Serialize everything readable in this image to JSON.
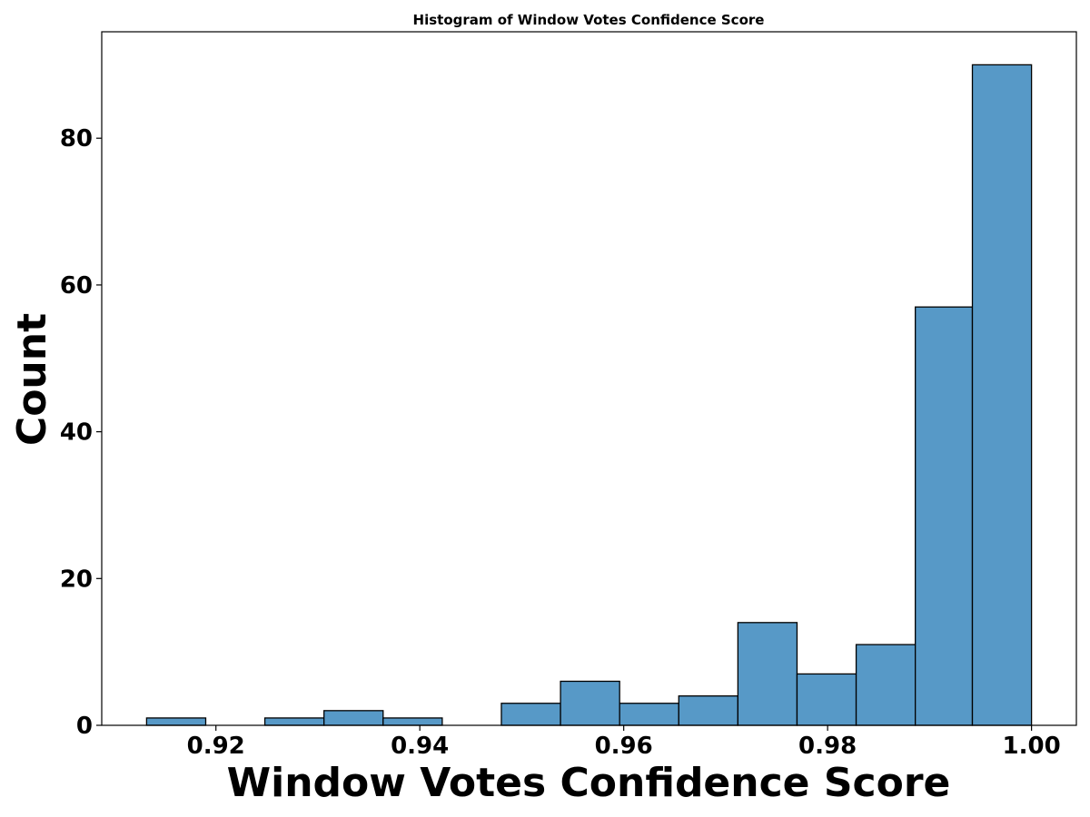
{
  "chart_data": {
    "type": "bar",
    "subtype": "histogram",
    "title": "Histogram of Window Votes Confidence Score",
    "xlabel": "Window Votes Confidence Score",
    "ylabel": "Count",
    "xlim": [
      0.9088,
      1.0044
    ],
    "ylim": [
      0,
      94.5
    ],
    "x_ticks": [
      0.92,
      0.94,
      0.96,
      0.98,
      1.0
    ],
    "x_tick_labels": [
      "0.92",
      "0.94",
      "0.96",
      "0.98",
      "1.00"
    ],
    "y_ticks": [
      0,
      20,
      40,
      60,
      80
    ],
    "y_tick_labels": [
      "0",
      "20",
      "40",
      "60",
      "80"
    ],
    "bin_edges": [
      0.9132,
      0.919,
      0.9248,
      0.9306,
      0.9364,
      0.9422,
      0.948,
      0.9538,
      0.9596,
      0.9654,
      0.9712,
      0.977,
      0.9828,
      0.9886,
      0.9942,
      1.0
    ],
    "counts": [
      1,
      0,
      1,
      2,
      1,
      0,
      3,
      6,
      3,
      4,
      14,
      7,
      11,
      57,
      90
    ],
    "bar_color": "#5799c7",
    "edge_color": "#000000",
    "grid": false,
    "legend": "none"
  }
}
